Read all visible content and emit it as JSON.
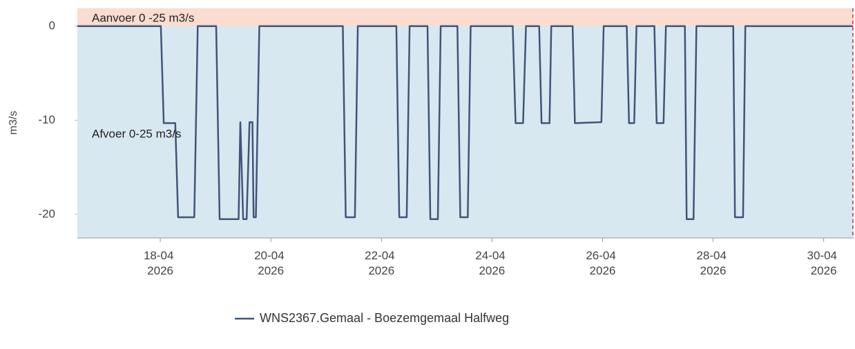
{
  "chart_data": {
    "type": "line",
    "ylabel": "m3/s",
    "xlim": [
      "2026-04-16T12:00",
      "2026-04-30T13:00"
    ],
    "ylim": [
      -22.5,
      1.9
    ],
    "yticks": [
      0,
      -10,
      -20
    ],
    "xticks": [
      {
        "value": "2026-04-18T00:00",
        "label": "18-04 2026"
      },
      {
        "value": "2026-04-20T00:00",
        "label": "20-04 2026"
      },
      {
        "value": "2026-04-22T00:00",
        "label": "22-04 2026"
      },
      {
        "value": "2026-04-24T00:00",
        "label": "24-04 2026"
      },
      {
        "value": "2026-04-26T00:00",
        "label": "26-04 2026"
      },
      {
        "value": "2026-04-28T00:00",
        "label": "28-04 2026"
      },
      {
        "value": "2026-04-30T00:00",
        "label": "30-04 2026"
      }
    ],
    "bands": [
      {
        "label": "Aanvoer 0 -25 m3/s",
        "range": [
          0,
          25
        ],
        "color": "#fadcd0"
      },
      {
        "label": "Afvoer 0-25 m3/s",
        "range": [
          -25,
          0
        ],
        "color": "#d8e8f0"
      }
    ],
    "now_marker": {
      "x": "2026-04-30T12:40",
      "color": "#d9302c"
    },
    "series": [
      {
        "name": "WNS2367.Gemaal - Boezemgemaal Halfweg",
        "color": "#3f5478",
        "x": [
          "2026-04-16T12:00",
          "2026-04-18T00:15",
          "2026-04-18T01:30",
          "2026-04-18T06:30",
          "2026-04-18T07:45",
          "2026-04-18T14:45",
          "2026-04-18T16:15",
          "2026-04-19T00:15",
          "2026-04-19T01:45",
          "2026-04-19T10:00",
          "2026-04-19T10:45",
          "2026-04-19T12:00",
          "2026-04-19T13:30",
          "2026-04-19T14:45",
          "2026-04-19T16:00",
          "2026-04-19T16:30",
          "2026-04-19T17:30",
          "2026-04-19T19:00",
          "2026-04-21T07:15",
          "2026-04-21T08:30",
          "2026-04-21T12:30",
          "2026-04-21T13:45",
          "2026-04-22T06:30",
          "2026-04-22T07:45",
          "2026-04-22T11:00",
          "2026-04-22T12:15",
          "2026-04-22T20:00",
          "2026-04-22T21:15",
          "2026-04-23T00:30",
          "2026-04-23T01:45",
          "2026-04-23T09:00",
          "2026-04-23T10:15",
          "2026-04-23T13:30",
          "2026-04-23T14:45",
          "2026-04-24T09:00",
          "2026-04-24T10:15",
          "2026-04-24T13:30",
          "2026-04-24T14:45",
          "2026-04-24T20:30",
          "2026-04-24T21:30",
          "2026-04-25T01:00",
          "2026-04-25T01:45",
          "2026-04-25T11:00",
          "2026-04-25T12:00",
          "2026-04-25T23:30",
          "2026-04-26T00:30",
          "2026-04-26T10:30",
          "2026-04-26T11:30",
          "2026-04-26T13:45",
          "2026-04-26T14:45",
          "2026-04-26T22:30",
          "2026-04-26T23:30",
          "2026-04-27T02:30",
          "2026-04-27T03:30",
          "2026-04-27T11:45",
          "2026-04-27T12:30",
          "2026-04-27T15:30",
          "2026-04-27T16:45",
          "2026-04-28T08:45",
          "2026-04-28T09:30",
          "2026-04-28T13:00",
          "2026-04-28T14:00",
          "2026-04-30T12:40"
        ],
        "values": [
          0,
          0,
          -10.3,
          -10.3,
          -20.3,
          -20.3,
          0,
          0,
          -20.5,
          -20.5,
          -10.2,
          -20.5,
          -20.5,
          -10.2,
          -10.2,
          -20.3,
          -20.3,
          0,
          0,
          -20.3,
          -20.3,
          0,
          0,
          -20.3,
          -20.3,
          0,
          0,
          -20.5,
          -20.5,
          0,
          0,
          -20.3,
          -20.3,
          0,
          0,
          -10.3,
          -10.3,
          0,
          0,
          -10.3,
          -10.3,
          0,
          0,
          -10.3,
          -10.2,
          0,
          0,
          -10.3,
          -10.3,
          0,
          0,
          -10.3,
          -10.3,
          0,
          0,
          -20.5,
          -20.5,
          0,
          0,
          -20.3,
          -20.3,
          0,
          0
        ]
      }
    ]
  }
}
